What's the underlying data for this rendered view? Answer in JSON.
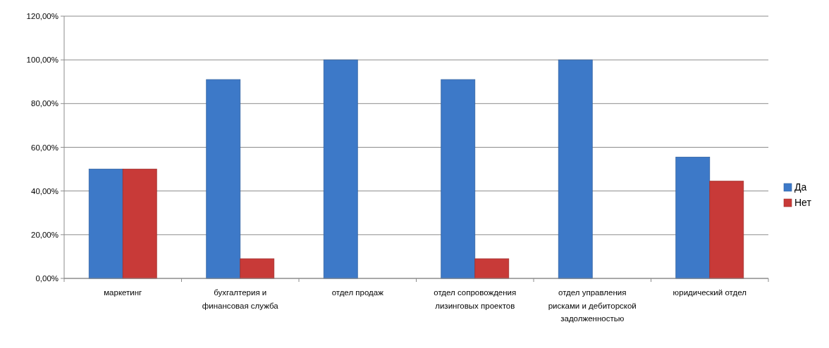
{
  "chart_data": {
    "type": "bar",
    "categories": [
      "маркетинг",
      "бухгалтерия и финансовая служба",
      "отдел продаж",
      "отдел сопровождения лизинговых проектов",
      "отдел управления рисками и дебиторской задолженностью",
      "юридический отдел"
    ],
    "series": [
      {
        "name": "Да",
        "color": "#3d79c8",
        "values": [
          50,
          91,
          100,
          91,
          100,
          55.5
        ]
      },
      {
        "name": "Нет",
        "color": "#c83a38",
        "values": [
          50,
          9,
          0,
          9,
          0,
          44.5
        ]
      }
    ],
    "ylim": [
      0,
      120
    ],
    "yticks": [
      {
        "value": 0,
        "label": "0,00%"
      },
      {
        "value": 20,
        "label": "20,00%"
      },
      {
        "value": 40,
        "label": "40,00%"
      },
      {
        "value": 60,
        "label": "60,00%"
      },
      {
        "value": 80,
        "label": "80,00%"
      },
      {
        "value": 100,
        "label": "100,00%"
      },
      {
        "value": 120,
        "label": "120,00%"
      }
    ],
    "grid": "y",
    "legend": "right"
  }
}
